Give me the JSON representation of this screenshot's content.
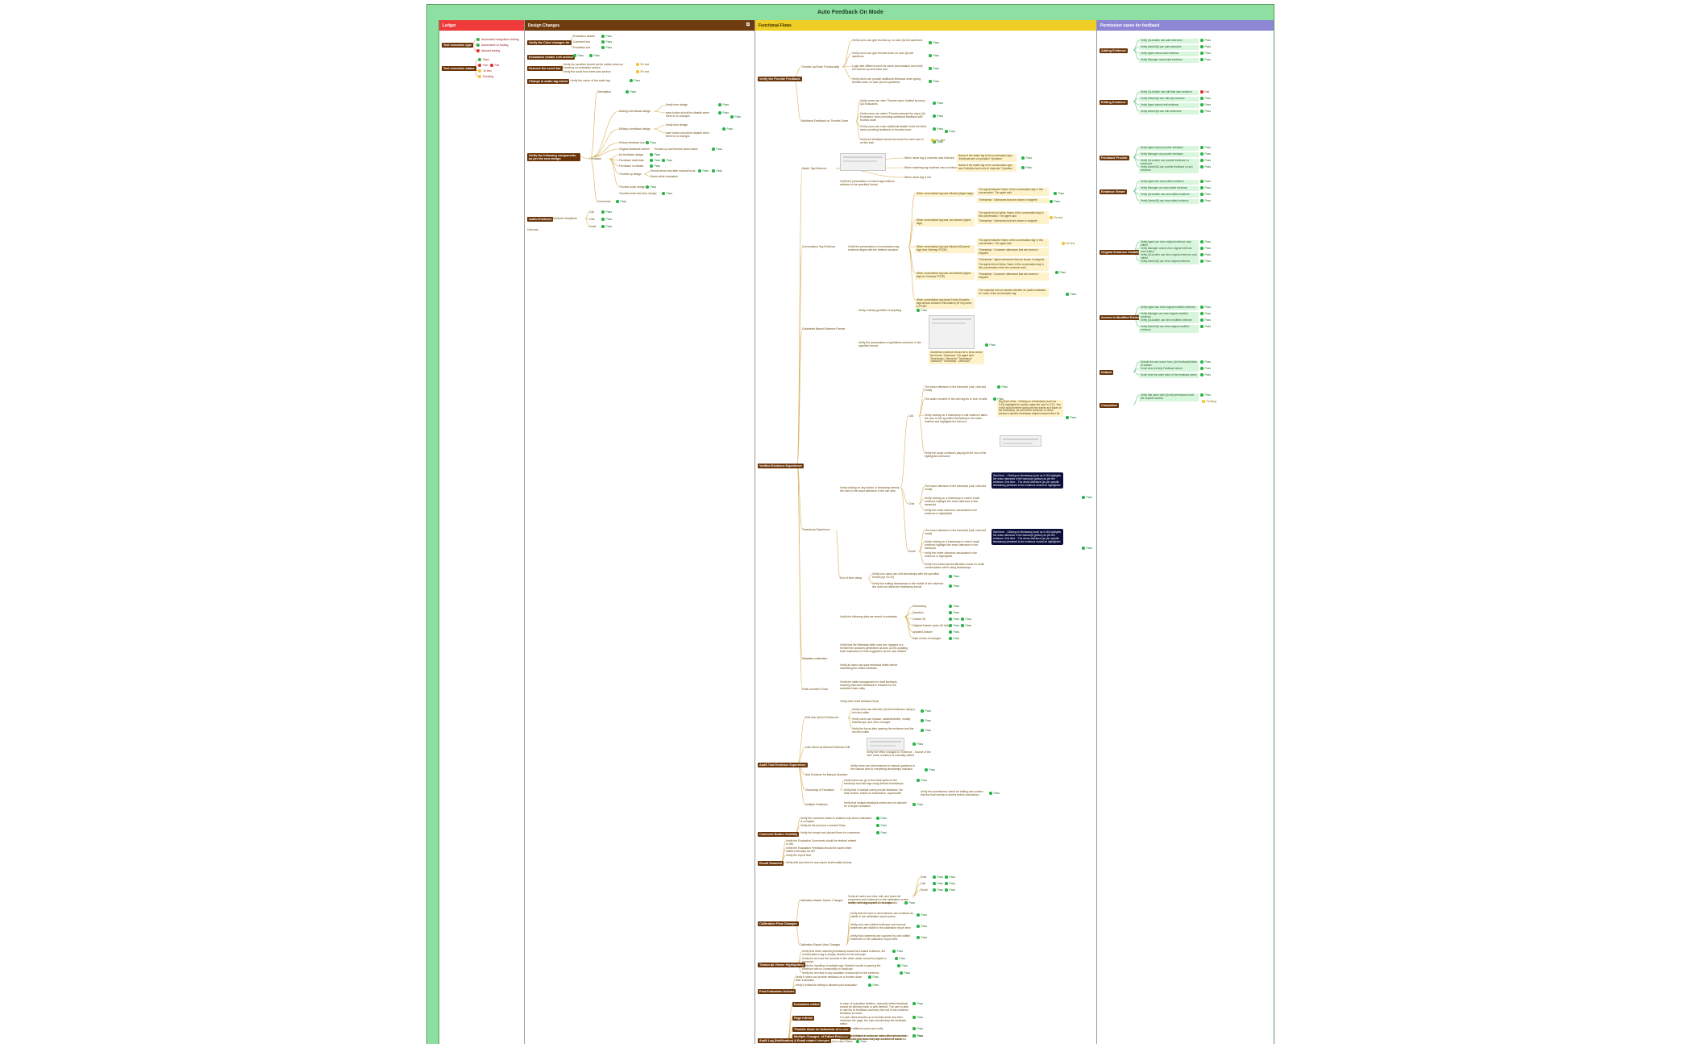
{
  "title": "Auto Feedback On Mode",
  "columns": {
    "ledger": "Ledger",
    "design": "Design Changes",
    "functional": "Functional Flows",
    "permission": "Permission cases for feedback"
  },
  "icons": {
    "expand": "expand-icon",
    "pass": "check-circle-icon",
    "fail": "cross-circle-icon",
    "todo": "pending-circle-icon"
  },
  "colors": {
    "ledger": "#ee3a3a",
    "design": "#6e3b0e",
    "functional": "#efcf26",
    "permission": "#8c86d4",
    "pass": "#2bb34a",
    "fail": "#e23030",
    "todo": "#f2c230",
    "title_bg": "#8ee0a2"
  },
  "ledger": {
    "exec_type": "Test execution type",
    "exec_items": [
      "Automated integration testing",
      "Automated UI testing",
      "Manual testing"
    ],
    "status_label": "Test execution status",
    "status_items": [
      "Pass",
      "Fail",
      "To test",
      "Pending"
    ],
    "fail_tag": "Fail"
  },
  "design": {
    "roots": [
      "Verify the Color changes for",
      "Evaluation header Left section",
      "Remove the scroll bar",
      "Change in audio tag select",
      "Verify the following components as per the new design",
      "Audio Evidence"
    ],
    "color_items": [
      "Evaluation header",
      "Comment box",
      "Feedback box"
    ],
    "eval_header": "Pass",
    "scroll_items": [
      "Verify the scrollbar should not be visible when we hovering on evaluation section",
      "Verify the scroll from three-dots section"
    ],
    "scroll_results": [
      "Re test",
      "Re test"
    ],
    "audio_select": "Verify the colour of the audio tag",
    "components": {
      "description": "Description",
      "adding_feedback": "Adding a feedback design",
      "adding_sub": [
        "Verify form design",
        "save button should be disable when there is no changes"
      ],
      "editing_feedback": "Editing a feedback design",
      "editing_sub": [
        "Verify form design",
        "save button should be disable when there is no changes"
      ],
      "history": "History feedback icon",
      "original": "Original feedback bottom",
      "original_sub": "Thumbs up and thumbs down button",
      "feedback": "Feedback",
      "feedback_items": [
        "No feedback design",
        "Feedback draft state",
        "Feedback on details"
      ],
      "thumbs_up": "Thumbs up design",
      "thumbs_up_sub": [
        "Should show only after manual focus",
        "Same while evaluation"
      ],
      "thumbs_down": "Thumbs down design",
      "thumbs_down_sub": "Thumbs down feel door design",
      "comments": "Comments"
    },
    "audio": {
      "verify": "Verify the Amplitude",
      "kinds": [
        "Call",
        "chat",
        "email"
      ]
    },
    "extra": "Unknown"
  },
  "functional": {
    "roots": [
      "Verify the Provide Feedback",
      "Verified Evidence Experience",
      "Audit Trail Evidence Experience",
      "Comment Button Visibility",
      "Recall Disabled",
      "Calibration Flow Changes",
      "Transcript Viewer Highlighting",
      "Post Evaluation Actions",
      "Edge cases",
      "Audit Log (Notification) & Email related changes"
    ],
    "provide_feedback": {
      "thumbs_up": "Thumbs Up/Down Functionality",
      "thumbs_up_items": [
        "Verify users can give thumbs up on auto QA-led questions",
        "Verify users can give thumbs down on auto QA-led questions",
        "Login with different users for same conversation and verify the thumbs up and down icon",
        "Verify users can provide additional feedback when giving thumbs down on auto QA-led questions"
      ],
      "additional": "Additional Feedback on Thumbs Down",
      "additional_items": [
        "Verify users can view 'Thumbs down' drafted by many QA Evaluators",
        "Verify users can select 'Thumbs selected by many QA Evaluators' when providing additional feedback with thumbs down",
        "Verify users can enter additional details in the text field when providing feedback on thumbs down",
        "Verify the feedback should be saved for each user in review task"
      ],
      "missing": "No data"
    },
    "verified": {
      "match_tag": "Match Tag Evidence",
      "match_items": [
        "When name tag is matched was followed",
        "When matching tag matched was not followed",
        "When name tag is set"
      ],
      "match_notes": [
        "Name of the match tag is the conversation type, 'Individual sent of operation' 'Question'",
        "Name of the match tag in the conversation type was 'Individual sent sent of response' 'Question'"
      ],
      "match_present": "Verify the presentation of match tag evidence adheres to the specified format",
      "conv_tag": "Conversation Tag Evidence",
      "conv_verify": "Verify the presentation of conversation tag evidence aligns with the defined structure",
      "conv_items": [
        "When conversation tag was followed (Agent tags)",
        "When conversation tag was not followed (Agent tags)",
        "When conversation tag was followed (Dynamic tags from Genesys PCDR)",
        "When conversation tag was not followed (Agent tags for Genesys PCDR)",
        "When conversation tag doesn't exist (Dynamic tags without customer information) for ong name in PCDR"
      ],
      "conv_notes": [
        "The agent followed 'Name of the conversation tag' in this conversation. The agent said",
        "'Timestamp': 'Utterances that are shown in snippets'",
        "The agent did not follow 'Name of the conversation tag' in this conversation. The agent said",
        "'Timestamp': 'Utterances that are shown in snippets'",
        "The agent followed 'Name of the conversation tag' in this conversation. The agent said",
        "'Timestamp': 'Customer utterances that are shown in snippets'",
        "'Timestamp': 'Agent utterances that are shown in snippets'",
        "The agent did not follow 'Name of the conversation tag' in this conversation when the customer said",
        "'Timestamp': 'Customer utterances that are shown in snippets'",
        "The customer did not mention whether as 'public metadata' for 'name of the conversation tag'"
      ],
      "guidelines": "Guidelines Based Evidence Format",
      "guidelines_items": [
        "Verify a library guideline is anything",
        "Verify the presentation of guidelines evidence in the specified format"
      ],
      "guidelines_notes": "Guidelines evidence should be to show above the format: 'Summary': The agent said 'Timestamp': 'Utterance' 'Timestamp': 'Utterance' 'Timestamp': 'Utterance'",
      "timestamp": "Timestamp Experience",
      "ts_verify": "Verify clicking on any button or timestamp directs the user to the exact utterance in the call view",
      "ts_call": "Call",
      "ts_call_items": [
        "The exact utterance in the transcript (call, chat and email)",
        "The audio moment in the call ring-5s or vice of calls",
        "Verify clicking on a timestamp in call evidence takes the user to the specified timestamp in the audio timeline and highlights the line text",
        "Verify the audio continues playing till the end of the highlighted utterance"
      ],
      "ts_call_note": "Big Short Case - Clicking on a timestamp (such as 0:13) highlighted in yellow, takes the user to 0:13 - line in the audio timeline along with the earlier and future of the timestamp, as well as the evidence or rarest phrase is specific timestamp requires beyond then 5s.",
      "ts_chat": "Chat",
      "ts_chat_items": [
        "The exact utterance in the transcript (call, chat and email)",
        "Verify clicking on a timestamp in chat & email evidence highlight the exact utterance in the transcript",
        "Verify the entire utterance associated in the evidence is highlighted"
      ],
      "ts_email": "Email",
      "ts_email_items": [
        "The exact utterance in the transcript (call, chat and email)",
        "Verify clicking on a timestamp in chat & email evidence highlight the exact utterance in the transcript",
        "Verify the entire utterance associated in the evidence is highlighted",
        "Verify how transcript identification works for email conversations when using timestamps"
      ],
      "dark_notes": [
        "Start time: - Clicking on timestamp (such as 0:18) highlights the exact utterance in the transcript (yellow) as per the evidence. End time: - The whole utterance (as per specific timestamp) pertained to the evidence should be highlighted",
        "Start time: - Clicking on timestamp (such as 0:18) highlights the exact utterance in the transcript (yellow) as per the evidence. End time: - The whole utterance (as per specific timestamp) pertained to the evidence should be highlighted"
      ],
      "end_of_time": "End of time stamp",
      "end_items": [
        "Verify how users can edit timestamps with the specified format (eg: 00:22)",
        "Verify that editing timestamps in the middle of the evidence line does not affect the timestamp format"
      ],
      "metadata": "Metadata verification",
      "metadata_verify": "Verify the following data are stored in metadata",
      "metadata_items": [
        "Generating",
        "Question",
        "Context ID",
        "Original Answer (auto QA led)",
        "Updated Answer",
        "Date & time of changes"
      ],
      "metadata_more": "Verify that the Metadata table uses are changed in a format from answers generated via auto QA by updating final explanation to final suggestion as the user drafted",
      "metadata_more2": "Verify all users can save feedback drafts before submitting the edited feedback",
      "draft": "Draft comment Flows",
      "draft_items": [
        "Verify the state management for draft feedback, ensuring that each feedback is retained for the submitted task entity",
        "Verify other draft feedback flows"
      ]
    },
    "audit": {
      "edit": "Edit Auto QA led Evidences",
      "edit_items": [
        "Verify users can edit auto QA-led evidences using a rich text editor",
        "Verify users can replace, add/edit/delete, modify timestamps, and more changes",
        "Verify the focus after opening the evidence and the rich text editor"
      ],
      "view": "User Direct as Manual Evidence Edit",
      "view_items": [
        "Verify the effect changed to 'Evidence - Source of the user' when evidence is manually edited"
      ],
      "add": "Add Evidence for Manual Question",
      "add_items": [
        "Verify users can add evidence to manual questions in the manual view to everything timestamps included"
      ],
      "owner": "Ownership of Feedback",
      "owner_items": [
        "Verify users can go to the ideal option in the transcript and edit tags using defined timestamps",
        "Verify that if multiple users provide feedback, the final version, based on submission, supersedes"
      ],
      "owner_note": "Verify the permissions check for editing and confirm that the final version is stored before submission",
      "multiple": "Multiple Feedback",
      "multiple_items": [
        "Verify that multiple feedback entries are not allowed for a single evaluation"
      ]
    },
    "comment": [
      "Verify the comment button is enabled only when evaluation is complete",
      "Verify all the previous comment flows",
      "Verify the accept and discard flows for comments"
    ],
    "recall": [
      "Verify the Evaluation Comments should be fetched related to this",
      "Verify the Evaluation Feedback should be saved when edited externally via API",
      "Verify the report flow",
      "Verify edit and view for any expert functionality checks"
    ],
    "calibration": {
      "master": "Calibration Master Screen Changes",
      "master_items": [
        "Verify all users can view, edit, and check all responses and evidences in the calibration review screen, with appropriate UI changes"
      ],
      "kinds": [
        "Chat",
        "Call",
        "Email"
      ],
      "remaining": "Verify remaining same flow as evaluation",
      "report": "Calibration Report View Changes",
      "report_items": [
        "Verify that the view of all evidences are rendered as visible in the calibration report screen",
        "Verify only user-edited evidences and manual evidences are visible in the calibration report view",
        "Verify that comments are captured by user-edited evidences in the calibration report view"
      ]
    },
    "transcript": [
      "Verify that when selecting timestamp-based text-based evidence, the conversation's tag is always directed to the transcript",
      "Verify the text and the commits in line when audio cannot be played in transcript",
      "Verify the handling of multiple tags 'Spelled' results in parsing the evidence with no connectivity to transcript",
      "Verify the text that is only available in transcript for the evidence"
    ],
    "post": [
      "Verify if users can provide feedback on a thumbs down after evaluation",
      "Verify if evidence editing is allowed post-evaluation"
    ],
    "edge": {
      "eval_edit": "Evaluation edited",
      "eval_edit_note": "In case of evaluation deletion, manually edited feedback should be still kept back or with deleted. The user is able to rate the AI feedback and keep the rest of the evidence feedback as same",
      "page_refresh": "Page refresh",
      "page_refresh_note": "If a user clicks thumbs up or thumbs down and then refreshes the page, the user should keep the feedback status",
      "thumbs_behaviour": "Thumbs down on behaviour of a user",
      "thumbs_behaviour_note": "Login with different users and verify",
      "diff_version": "Different Versions of Edited Evidence",
      "diff_version_note": "Confirm that different users can have different versions of edited evidence and verify the outcome for each",
      "multi_change": "Multiple Changes",
      "multi_change_note": "Verify that changes in evidence states and options when users choose and leave the page in different scenarios"
    },
    "audit_log": "Verify the legend for User Filters"
  },
  "permission": {
    "groups": [
      {
        "label": "Adding Evidence",
        "items": [
          "Verify QA Auditor can add evidences",
          "Verify Admin/QA can add evidences",
          "Verify Agent cannot add evidence",
          "Verify Manager cannot add evidence"
        ]
      },
      {
        "label": "Editing Evidence",
        "items": [
          "Verify QA Auditor can edit their own evidence",
          "Verify Admin/QA can edit any evidence",
          "Verify Agent cannot edit evidence",
          "Verify Admin/QA can edit evidences"
        ]
      },
      {
        "label": "Feedback Provide",
        "items": [
          "Verify Agent cannot provide feedback",
          "Verify Manager can provide feedback",
          "Verify QA Auditor can provide feedback on evidences",
          "Verify Admin/QA can provide feedback on any evidence"
        ]
      },
      {
        "label": "Evidence Viewer",
        "items": [
          "Verify Agent can view edited evidence",
          "Verify Manager can view edited evidence",
          "Verify QA Auditor can view edited evidence",
          "Verify Admin/QA can view edited evidence"
        ]
      },
      {
        "label": "Original Evidence Visibility",
        "items": [
          "Verify Agent can view original evidence once edited",
          "Verify Manager cannot view original evidence once edited",
          "Verify QA Auditor can view original evidence once edited",
          "Verify Admin/QA can view original evidence"
        ]
      },
      {
        "label": "Access to Modified Evidence",
        "items": [
          "Verify Agent can view original modified evidence",
          "Verify Manager can view original modified evidence",
          "Verify QA Auditor can view modified evidence",
          "Verify Admin/QA can view original modified evidence"
        ]
      },
      {
        "label": "Default",
        "items": [
          "Default fee user owner from QA Feedback/hidden to sustain",
          "Scroll view is freely Feedback tested",
          "Scroll view the lower index of the feedback saves"
        ]
      },
      {
        "label": "Completed",
        "items": [
          "Verify that users with QA edit permissions have the required access"
        ]
      }
    ],
    "pending": "Pending"
  },
  "result": {
    "pass": "Pass",
    "fail": "Fail",
    "todo": "To test",
    "retest": "Re test",
    "nodata": "No data"
  }
}
